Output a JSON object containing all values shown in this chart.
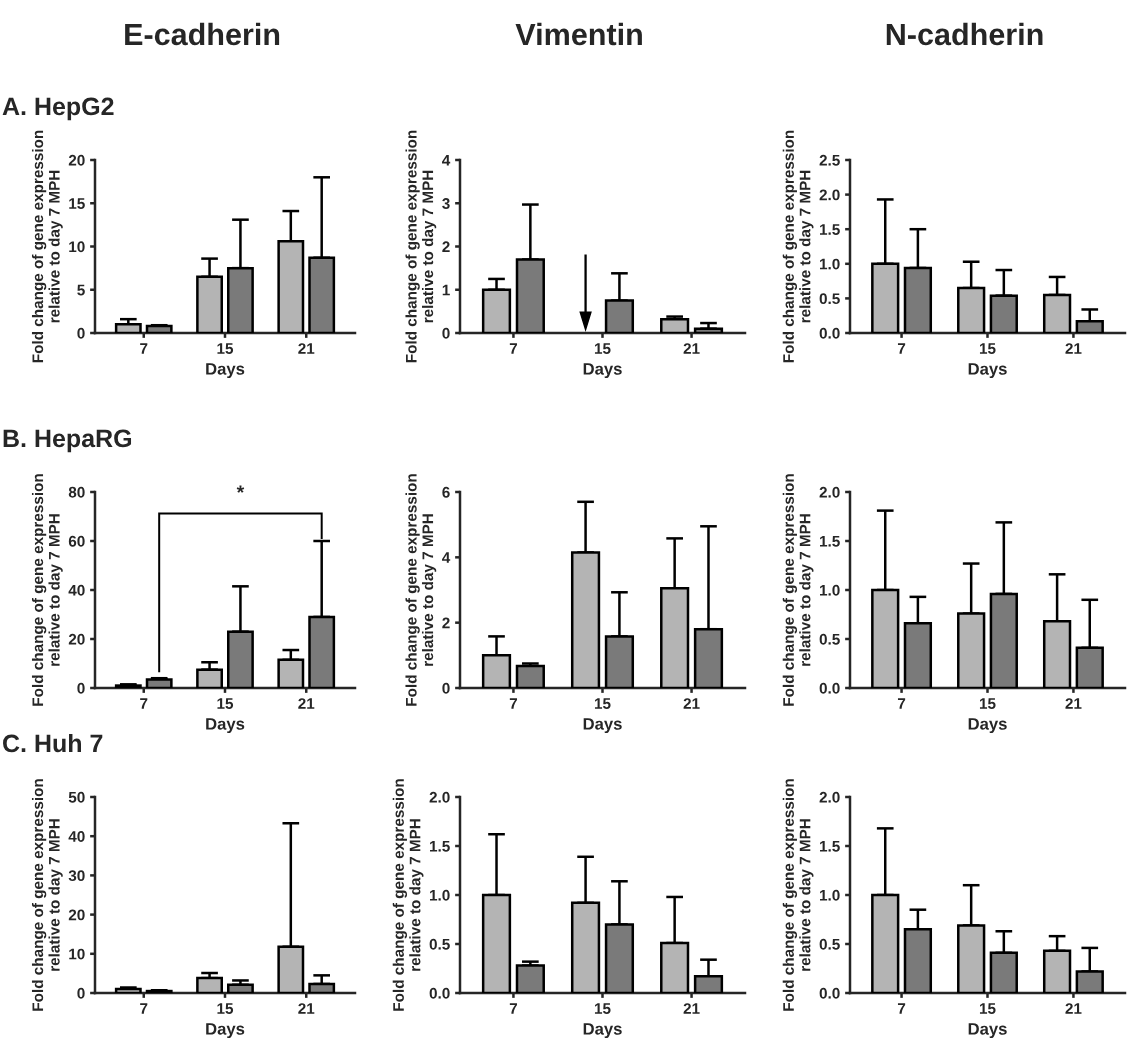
{
  "chart_data": [
    {
      "type": "bar",
      "title": "E-cadherin",
      "subtitle": "A. HepG2",
      "xlabel": "Days",
      "ylabel": "Fold change of gene expression\nrelative to day 7 MPH",
      "categories": [
        "7",
        "15",
        "21"
      ],
      "ylim": [
        0,
        20
      ],
      "yticks": [
        0,
        5,
        10,
        15,
        20
      ],
      "legend": false,
      "grid": false,
      "series": [
        {
          "color": "#b4b4b4",
          "values": [
            1.0,
            6.5,
            10.6
          ],
          "errors": [
            [
              1.0,
              1.6
            ],
            [
              6.5,
              8.6
            ],
            [
              10.6,
              14.1
            ]
          ]
        },
        {
          "color": "#7a7a7a",
          "values": [
            0.8,
            7.5,
            8.7
          ],
          "errors": [
            [
              0.8,
              0.9
            ],
            [
              7.5,
              13.1
            ],
            [
              8.7,
              18.0
            ]
          ]
        }
      ]
    },
    {
      "type": "bar",
      "title": "Vimentin",
      "xlabel": "Days",
      "ylabel": "Fold change of gene expression\nrelative to day 7 MPH",
      "categories": [
        "7",
        "15",
        "21"
      ],
      "ylim": [
        0,
        4
      ],
      "yticks": [
        0,
        1,
        2,
        3,
        4
      ],
      "legend": false,
      "grid": false,
      "series": [
        {
          "color": "#b4b4b4",
          "values": [
            1.0,
            null,
            0.32
          ],
          "errors": [
            [
              1.0,
              1.25
            ],
            null,
            [
              0.32,
              0.38
            ]
          ]
        },
        {
          "color": "#7a7a7a",
          "values": [
            1.7,
            0.75,
            0.1
          ],
          "errors": [
            [
              1.7,
              2.97
            ],
            [
              0.75,
              1.38
            ],
            [
              0.1,
              0.23
            ]
          ]
        }
      ]
    },
    {
      "type": "bar",
      "title": "N-cadherin",
      "xlabel": "Days",
      "ylabel": "Fold change of gene expression\nrelative to day 7 MPH",
      "categories": [
        "7",
        "15",
        "21"
      ],
      "ylim": [
        0,
        2.5
      ],
      "yticks": [
        {
          "value": 0,
          "label": "0.0"
        },
        {
          "value": 0.5,
          "label": "0.5"
        },
        {
          "value": 1,
          "label": "1.0"
        },
        {
          "value": 1.5,
          "label": "1.5"
        },
        {
          "value": 2,
          "label": "2.0"
        },
        {
          "value": 2.5,
          "label": "2.5"
        }
      ],
      "legend": false,
      "grid": false,
      "series": [
        {
          "color": "#b4b4b4",
          "values": [
            1.0,
            0.65,
            0.55
          ],
          "errors": [
            [
              1.0,
              1.93
            ],
            [
              0.65,
              1.03
            ],
            [
              0.55,
              0.81
            ]
          ]
        },
        {
          "color": "#7a7a7a",
          "values": [
            0.94,
            0.54,
            0.17
          ],
          "errors": [
            [
              0.94,
              1.5
            ],
            [
              0.54,
              0.91
            ],
            [
              0.17,
              0.34
            ]
          ]
        }
      ]
    },
    {
      "type": "bar",
      "subtitle": "B. HepaRG",
      "xlabel": "Days",
      "ylabel": "Fold change of gene expression\nrelative to day 7 MPH",
      "categories": [
        "7",
        "15",
        "21"
      ],
      "ylim": [
        0,
        80
      ],
      "yticks": [
        0,
        20,
        40,
        60,
        80
      ],
      "legend": false,
      "grid": false,
      "annotations": [
        "*"
      ],
      "series": [
        {
          "color": "#b4b4b4",
          "values": [
            1.0,
            7.5,
            11.5
          ],
          "errors": [
            [
              1.0,
              1.5
            ],
            [
              7.5,
              10.5
            ],
            [
              11.5,
              15.5
            ]
          ]
        },
        {
          "color": "#7a7a7a",
          "values": [
            3.5,
            23,
            29
          ],
          "errors": [
            [
              3.5,
              4
            ],
            [
              23,
              41.5
            ],
            [
              29,
              60
            ]
          ]
        }
      ]
    },
    {
      "type": "bar",
      "xlabel": "Days",
      "ylabel": "Fold change of gene expression\nrelative to day 7 MPH",
      "categories": [
        "7",
        "15",
        "21"
      ],
      "ylim": [
        0,
        6
      ],
      "yticks": [
        0,
        2,
        4,
        6
      ],
      "legend": false,
      "grid": false,
      "series": [
        {
          "color": "#b4b4b4",
          "values": [
            1.0,
            4.15,
            3.05
          ],
          "errors": [
            [
              1.0,
              1.58
            ],
            [
              4.15,
              5.7
            ],
            [
              3.05,
              4.58
            ]
          ]
        },
        {
          "color": "#7a7a7a",
          "values": [
            0.67,
            1.58,
            1.8
          ],
          "errors": [
            [
              0.67,
              0.75
            ],
            [
              1.58,
              2.93
            ],
            [
              1.8,
              4.95
            ]
          ]
        }
      ]
    },
    {
      "type": "bar",
      "xlabel": "Days",
      "ylabel": "Fold change of gene expression\nrelative to day 7 MPH",
      "categories": [
        "7",
        "15",
        "21"
      ],
      "ylim": [
        0,
        2
      ],
      "yticks": [
        {
          "value": 0,
          "label": "0.0"
        },
        {
          "value": 0.5,
          "label": "0.5"
        },
        {
          "value": 1,
          "label": "1.0"
        },
        {
          "value": 1.5,
          "label": "1.5"
        },
        {
          "value": 2,
          "label": "2.0"
        }
      ],
      "legend": false,
      "grid": false,
      "series": [
        {
          "color": "#b4b4b4",
          "values": [
            1.0,
            0.76,
            0.68
          ],
          "errors": [
            [
              1.0,
              1.81
            ],
            [
              0.76,
              1.27
            ],
            [
              0.68,
              1.16
            ]
          ]
        },
        {
          "color": "#7a7a7a",
          "values": [
            0.66,
            0.96,
            0.41
          ],
          "errors": [
            [
              0.66,
              0.93
            ],
            [
              0.96,
              1.69
            ],
            [
              0.41,
              0.9
            ]
          ]
        }
      ]
    },
    {
      "type": "bar",
      "subtitle": "C. Huh 7",
      "xlabel": "Days",
      "ylabel": "Fold change of gene expression\nrelative to day 7 MPH",
      "categories": [
        "7",
        "15",
        "21"
      ],
      "ylim": [
        0,
        50
      ],
      "yticks": [
        0,
        10,
        20,
        30,
        40,
        50
      ],
      "legend": false,
      "grid": false,
      "series": [
        {
          "color": "#b4b4b4",
          "values": [
            1.0,
            3.8,
            11.8
          ],
          "errors": [
            [
              1.0,
              1.4
            ],
            [
              3.8,
              5.1
            ],
            [
              11.8,
              43.3
            ]
          ]
        },
        {
          "color": "#7a7a7a",
          "values": [
            0.5,
            2.1,
            2.3
          ],
          "errors": [
            [
              0.5,
              0.7
            ],
            [
              2.1,
              3.2
            ],
            [
              2.3,
              4.5
            ]
          ]
        }
      ]
    },
    {
      "type": "bar",
      "xlabel": "Days",
      "ylabel": "Fold change of gene expression\nrelative to day 7 MPH",
      "categories": [
        "7",
        "15",
        "21"
      ],
      "ylim": [
        0,
        2
      ],
      "yticks": [
        {
          "value": 0,
          "label": "0.0"
        },
        {
          "value": 0.5,
          "label": "0.5"
        },
        {
          "value": 1,
          "label": "1.0"
        },
        {
          "value": 1.5,
          "label": "1.5"
        },
        {
          "value": 2,
          "label": "2.0"
        }
      ],
      "legend": false,
      "grid": false,
      "series": [
        {
          "color": "#b4b4b4",
          "values": [
            1.0,
            0.92,
            0.51
          ],
          "errors": [
            [
              1.0,
              1.62
            ],
            [
              0.92,
              1.39
            ],
            [
              0.51,
              0.98
            ]
          ]
        },
        {
          "color": "#7a7a7a",
          "values": [
            0.28,
            0.7,
            0.17
          ],
          "errors": [
            [
              0.28,
              0.32
            ],
            [
              0.7,
              1.14
            ],
            [
              0.17,
              0.34
            ]
          ]
        }
      ]
    },
    {
      "type": "bar",
      "xlabel": "Days",
      "ylabel": "Fold change of gene expression\nrelative to day 7 MPH",
      "categories": [
        "7",
        "15",
        "21"
      ],
      "ylim": [
        0,
        2
      ],
      "yticks": [
        {
          "value": 0,
          "label": "0.0"
        },
        {
          "value": 0.5,
          "label": "0.5"
        },
        {
          "value": 1,
          "label": "1.0"
        },
        {
          "value": 1.5,
          "label": "1.5"
        },
        {
          "value": 2,
          "label": "2.0"
        }
      ],
      "legend": false,
      "grid": false,
      "series": [
        {
          "color": "#b4b4b4",
          "values": [
            1.0,
            0.69,
            0.43
          ],
          "errors": [
            [
              1.0,
              1.68
            ],
            [
              0.69,
              1.1
            ],
            [
              0.43,
              0.58
            ]
          ]
        },
        {
          "color": "#7a7a7a",
          "values": [
            0.65,
            0.41,
            0.22
          ],
          "errors": [
            [
              0.65,
              0.85
            ],
            [
              0.41,
              0.63
            ],
            [
              0.22,
              0.46
            ]
          ]
        }
      ]
    }
  ]
}
